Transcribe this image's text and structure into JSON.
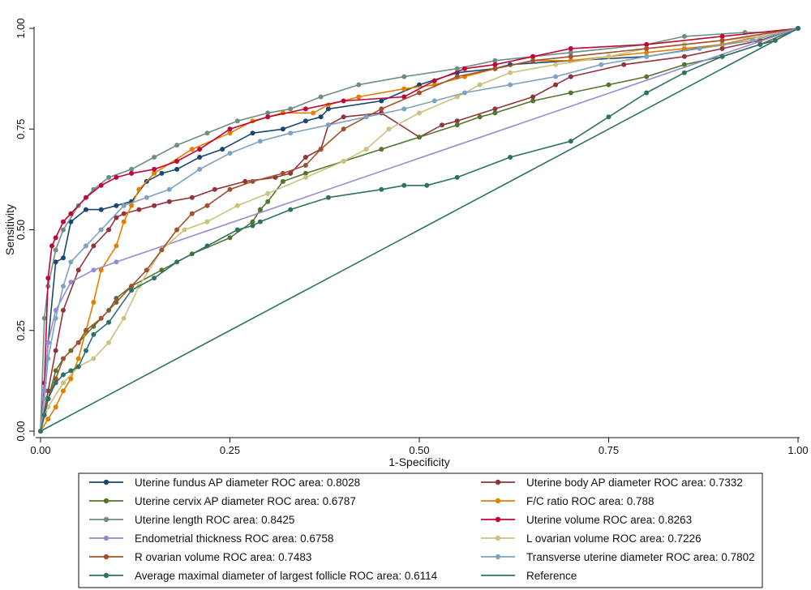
{
  "chart_data": {
    "type": "line",
    "title": "",
    "xlabel": "1-Specificity",
    "ylabel": "Sensitivity",
    "xlim": [
      0,
      1
    ],
    "ylim": [
      0,
      1
    ],
    "xticks": [
      "0.00",
      "0.25",
      "0.50",
      "0.75",
      "1.00"
    ],
    "yticks": [
      "0.00",
      "0.25",
      "0.50",
      "0.75",
      "1.00"
    ],
    "grid": false,
    "legend_placement": "bottom",
    "series": [
      {
        "name": "Uterine fundus AP diameter ROC area: 0.8028",
        "color": "#1a476f",
        "x": [
          0,
          0.005,
          0.01,
          0.02,
          0.03,
          0.04,
          0.06,
          0.08,
          0.1,
          0.12,
          0.14,
          0.16,
          0.18,
          0.21,
          0.24,
          0.28,
          0.32,
          0.35,
          0.37,
          0.38,
          0.45,
          0.5,
          0.55,
          0.6,
          0.62,
          0.7,
          0.8,
          0.9,
          1.0
        ],
        "y": [
          0,
          0.1,
          0.22,
          0.42,
          0.43,
          0.52,
          0.55,
          0.55,
          0.56,
          0.57,
          0.62,
          0.64,
          0.65,
          0.68,
          0.7,
          0.74,
          0.75,
          0.77,
          0.78,
          0.8,
          0.82,
          0.86,
          0.89,
          0.9,
          0.91,
          0.92,
          0.93,
          0.96,
          1.0
        ]
      },
      {
        "name": "Uterine body AP diameter ROC area: 0.7332",
        "color": "#90353b",
        "x": [
          0,
          0.01,
          0.02,
          0.03,
          0.05,
          0.07,
          0.09,
          0.1,
          0.11,
          0.13,
          0.15,
          0.17,
          0.2,
          0.23,
          0.27,
          0.31,
          0.33,
          0.35,
          0.37,
          0.38,
          0.4,
          0.45,
          0.5,
          0.53,
          0.55,
          0.6,
          0.65,
          0.68,
          0.7,
          0.77,
          0.85,
          0.9,
          0.95,
          1.0
        ],
        "y": [
          0,
          0.1,
          0.2,
          0.3,
          0.4,
          0.46,
          0.5,
          0.53,
          0.54,
          0.55,
          0.56,
          0.57,
          0.58,
          0.6,
          0.62,
          0.63,
          0.64,
          0.68,
          0.7,
          0.76,
          0.78,
          0.79,
          0.73,
          0.76,
          0.77,
          0.8,
          0.83,
          0.86,
          0.88,
          0.91,
          0.93,
          0.95,
          0.97,
          1.0
        ]
      },
      {
        "name": "Uterine cervix AP diameter ROC area: 0.6787",
        "color": "#55752f",
        "x": [
          0,
          0.01,
          0.02,
          0.03,
          0.04,
          0.05,
          0.07,
          0.09,
          0.1,
          0.12,
          0.16,
          0.2,
          0.25,
          0.28,
          0.29,
          0.3,
          0.32,
          0.35,
          0.4,
          0.45,
          0.5,
          0.55,
          0.58,
          0.6,
          0.65,
          0.7,
          0.75,
          0.8,
          0.85,
          0.9,
          0.95,
          1.0
        ],
        "y": [
          0,
          0.08,
          0.15,
          0.18,
          0.2,
          0.22,
          0.26,
          0.3,
          0.33,
          0.36,
          0.4,
          0.44,
          0.48,
          0.52,
          0.55,
          0.57,
          0.62,
          0.64,
          0.67,
          0.7,
          0.73,
          0.76,
          0.78,
          0.79,
          0.82,
          0.84,
          0.86,
          0.88,
          0.91,
          0.93,
          0.96,
          1.0
        ]
      },
      {
        "name": "F/C ratio ROC area: 0.788",
        "color": "#e37e00",
        "x": [
          0,
          0.01,
          0.02,
          0.03,
          0.04,
          0.05,
          0.06,
          0.07,
          0.08,
          0.1,
          0.11,
          0.12,
          0.13,
          0.15,
          0.2,
          0.25,
          0.28,
          0.32,
          0.36,
          0.38,
          0.42,
          0.48,
          0.52,
          0.56,
          0.6,
          0.65,
          0.7,
          0.75,
          0.8,
          0.85,
          0.9,
          0.95,
          1.0
        ],
        "y": [
          0,
          0.03,
          0.06,
          0.1,
          0.13,
          0.18,
          0.25,
          0.32,
          0.4,
          0.46,
          0.52,
          0.56,
          0.6,
          0.64,
          0.7,
          0.74,
          0.77,
          0.79,
          0.79,
          0.81,
          0.83,
          0.85,
          0.86,
          0.88,
          0.9,
          0.92,
          0.92,
          0.93,
          0.94,
          0.95,
          0.96,
          0.98,
          1.0
        ]
      },
      {
        "name": "Uterine length ROC area: 0.8425",
        "color": "#6e8e84",
        "x": [
          0,
          0.005,
          0.01,
          0.02,
          0.03,
          0.05,
          0.07,
          0.09,
          0.12,
          0.15,
          0.18,
          0.22,
          0.26,
          0.3,
          0.33,
          0.37,
          0.42,
          0.48,
          0.55,
          0.6,
          0.65,
          0.7,
          0.8,
          0.85,
          0.93,
          0.97,
          1.0
        ],
        "y": [
          0,
          0.28,
          0.36,
          0.45,
          0.5,
          0.56,
          0.6,
          0.63,
          0.65,
          0.68,
          0.71,
          0.74,
          0.77,
          0.79,
          0.8,
          0.83,
          0.86,
          0.88,
          0.9,
          0.92,
          0.93,
          0.94,
          0.96,
          0.98,
          0.99,
          0.99,
          1.0
        ]
      },
      {
        "name": "Uterine volume ROC area: 0.8263",
        "color": "#c10534",
        "x": [
          0,
          0.005,
          0.01,
          0.015,
          0.02,
          0.03,
          0.04,
          0.06,
          0.08,
          0.1,
          0.12,
          0.15,
          0.18,
          0.21,
          0.25,
          0.3,
          0.35,
          0.4,
          0.48,
          0.52,
          0.56,
          0.6,
          0.65,
          0.7,
          0.8,
          0.9,
          1.0
        ],
        "y": [
          0,
          0.12,
          0.38,
          0.46,
          0.48,
          0.52,
          0.54,
          0.58,
          0.61,
          0.63,
          0.64,
          0.65,
          0.67,
          0.7,
          0.75,
          0.78,
          0.8,
          0.82,
          0.83,
          0.87,
          0.9,
          0.91,
          0.93,
          0.95,
          0.96,
          0.98,
          1.0
        ]
      },
      {
        "name": "Endometrial thickness ROC area: 0.6758",
        "color": "#938dd2",
        "x": [
          0,
          0.005,
          0.01,
          0.02,
          0.04,
          0.07,
          0.1,
          1.0
        ],
        "y": [
          0,
          0.1,
          0.22,
          0.3,
          0.37,
          0.4,
          0.42,
          1.0
        ]
      },
      {
        "name": "L ovarian volume ROC area: 0.7226",
        "color": "#cac27e",
        "x": [
          0,
          0.01,
          0.03,
          0.05,
          0.07,
          0.09,
          0.11,
          0.13,
          0.16,
          0.19,
          0.22,
          0.26,
          0.3,
          0.35,
          0.4,
          0.43,
          0.46,
          0.5,
          0.55,
          0.58,
          0.62,
          0.68,
          0.75,
          0.8,
          0.85,
          0.9,
          0.95,
          1.0
        ],
        "y": [
          0,
          0.06,
          0.12,
          0.16,
          0.18,
          0.22,
          0.28,
          0.36,
          0.45,
          0.5,
          0.52,
          0.56,
          0.59,
          0.63,
          0.67,
          0.7,
          0.75,
          0.79,
          0.83,
          0.86,
          0.89,
          0.91,
          0.93,
          0.95,
          0.96,
          0.97,
          0.98,
          1.0
        ]
      },
      {
        "name": "R ovarian volume ROC area: 0.7483",
        "color": "#a0522d",
        "x": [
          0,
          0.01,
          0.02,
          0.03,
          0.05,
          0.06,
          0.08,
          0.1,
          0.12,
          0.14,
          0.16,
          0.18,
          0.2,
          0.22,
          0.25,
          0.28,
          0.32,
          0.35,
          0.37,
          0.4,
          0.45,
          0.5,
          0.55,
          0.6,
          0.65,
          0.7,
          0.8,
          0.9,
          1.0
        ],
        "y": [
          0,
          0.08,
          0.13,
          0.18,
          0.22,
          0.25,
          0.28,
          0.32,
          0.36,
          0.4,
          0.45,
          0.5,
          0.54,
          0.56,
          0.6,
          0.62,
          0.64,
          0.66,
          0.7,
          0.75,
          0.8,
          0.84,
          0.88,
          0.9,
          0.92,
          0.93,
          0.95,
          0.97,
          1.0
        ]
      },
      {
        "name": "Transverse uterine diameter ROC area: 0.7802",
        "color": "#7ea2c1",
        "x": [
          0,
          0.005,
          0.01,
          0.02,
          0.03,
          0.04,
          0.06,
          0.08,
          0.11,
          0.14,
          0.17,
          0.21,
          0.25,
          0.29,
          0.33,
          0.38,
          0.43,
          0.48,
          0.52,
          0.56,
          0.62,
          0.68,
          0.74,
          0.8,
          0.87,
          0.94,
          1.0
        ],
        "y": [
          0,
          0.08,
          0.18,
          0.28,
          0.36,
          0.42,
          0.46,
          0.5,
          0.56,
          0.58,
          0.6,
          0.65,
          0.69,
          0.72,
          0.74,
          0.76,
          0.78,
          0.8,
          0.82,
          0.84,
          0.86,
          0.88,
          0.91,
          0.93,
          0.95,
          0.97,
          1.0
        ]
      },
      {
        "name": "Average maximal diameter of largest follicle ROC area: 0.6114",
        "color": "#2e7266",
        "x": [
          0,
          0.005,
          0.01,
          0.02,
          0.03,
          0.04,
          0.05,
          0.06,
          0.07,
          0.09,
          0.12,
          0.15,
          0.18,
          0.22,
          0.26,
          0.28,
          0.29,
          0.33,
          0.38,
          0.45,
          0.48,
          0.51,
          0.55,
          0.62,
          0.7,
          0.75,
          0.8,
          0.85,
          0.9,
          0.95,
          0.97,
          1.0
        ],
        "y": [
          0,
          0.04,
          0.08,
          0.12,
          0.14,
          0.15,
          0.16,
          0.2,
          0.24,
          0.27,
          0.35,
          0.38,
          0.42,
          0.46,
          0.5,
          0.51,
          0.52,
          0.55,
          0.58,
          0.6,
          0.61,
          0.61,
          0.63,
          0.68,
          0.72,
          0.78,
          0.84,
          0.89,
          0.93,
          0.96,
          0.97,
          1.0
        ]
      },
      {
        "name": "Reference",
        "color": "#2e7266",
        "markers": false,
        "x": [
          0,
          1
        ],
        "y": [
          0,
          1
        ]
      }
    ]
  }
}
